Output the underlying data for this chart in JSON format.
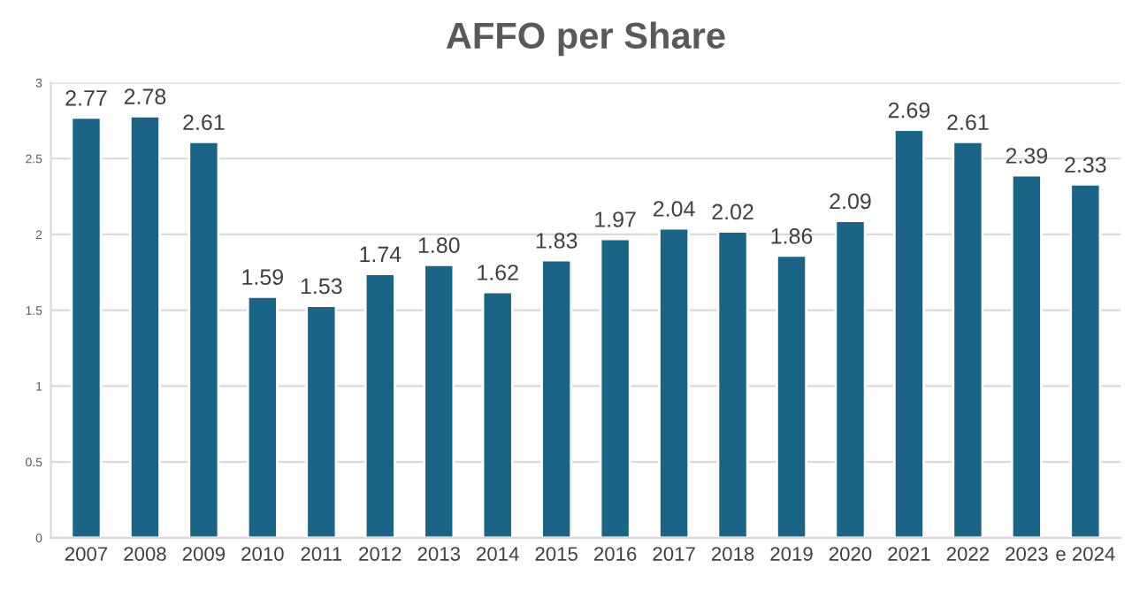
{
  "chart_data": {
    "type": "bar",
    "title": "AFFO per Share",
    "categories": [
      "2007",
      "2008",
      "2009",
      "2010",
      "2011",
      "2012",
      "2013",
      "2014",
      "2015",
      "2016",
      "2017",
      "2018",
      "2019",
      "2020",
      "2021",
      "2022",
      "2023",
      "e 2024"
    ],
    "values": [
      2.77,
      2.78,
      2.61,
      1.59,
      1.53,
      1.74,
      1.8,
      1.62,
      1.83,
      1.97,
      2.04,
      2.02,
      1.86,
      2.09,
      2.69,
      2.61,
      2.39,
      2.33
    ],
    "value_labels": [
      "2.77",
      "2.78",
      "2.61",
      "1.59",
      "1.53",
      "1.74",
      "1.80",
      "1.62",
      "1.83",
      "1.97",
      "2.04",
      "2.02",
      "1.86",
      "2.09",
      "2.69",
      "2.61",
      "2.39",
      "2.33"
    ],
    "color": "#1a6488",
    "ylim": [
      0,
      3
    ],
    "yticks": [
      0,
      0.5,
      1,
      1.5,
      2,
      2.5,
      3
    ],
    "grid": "y"
  }
}
